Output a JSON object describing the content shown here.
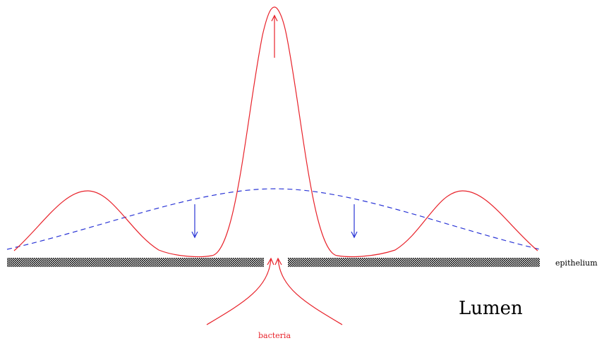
{
  "labels": {
    "epithelium": "epithelium",
    "lumen": "Lumen",
    "bacteria": "bacteria"
  },
  "colors": {
    "red_curve": "#e8222a",
    "blue_curve": "#2a35d6",
    "background": "#ffffff",
    "epithelium_pattern": "#000000"
  },
  "curves": {
    "red_solid": "signal concentration profile",
    "blue_dashed": "broad concentration profile"
  },
  "arrows": {
    "peak": "up",
    "blue_side": "down",
    "bacteria": "up"
  }
}
